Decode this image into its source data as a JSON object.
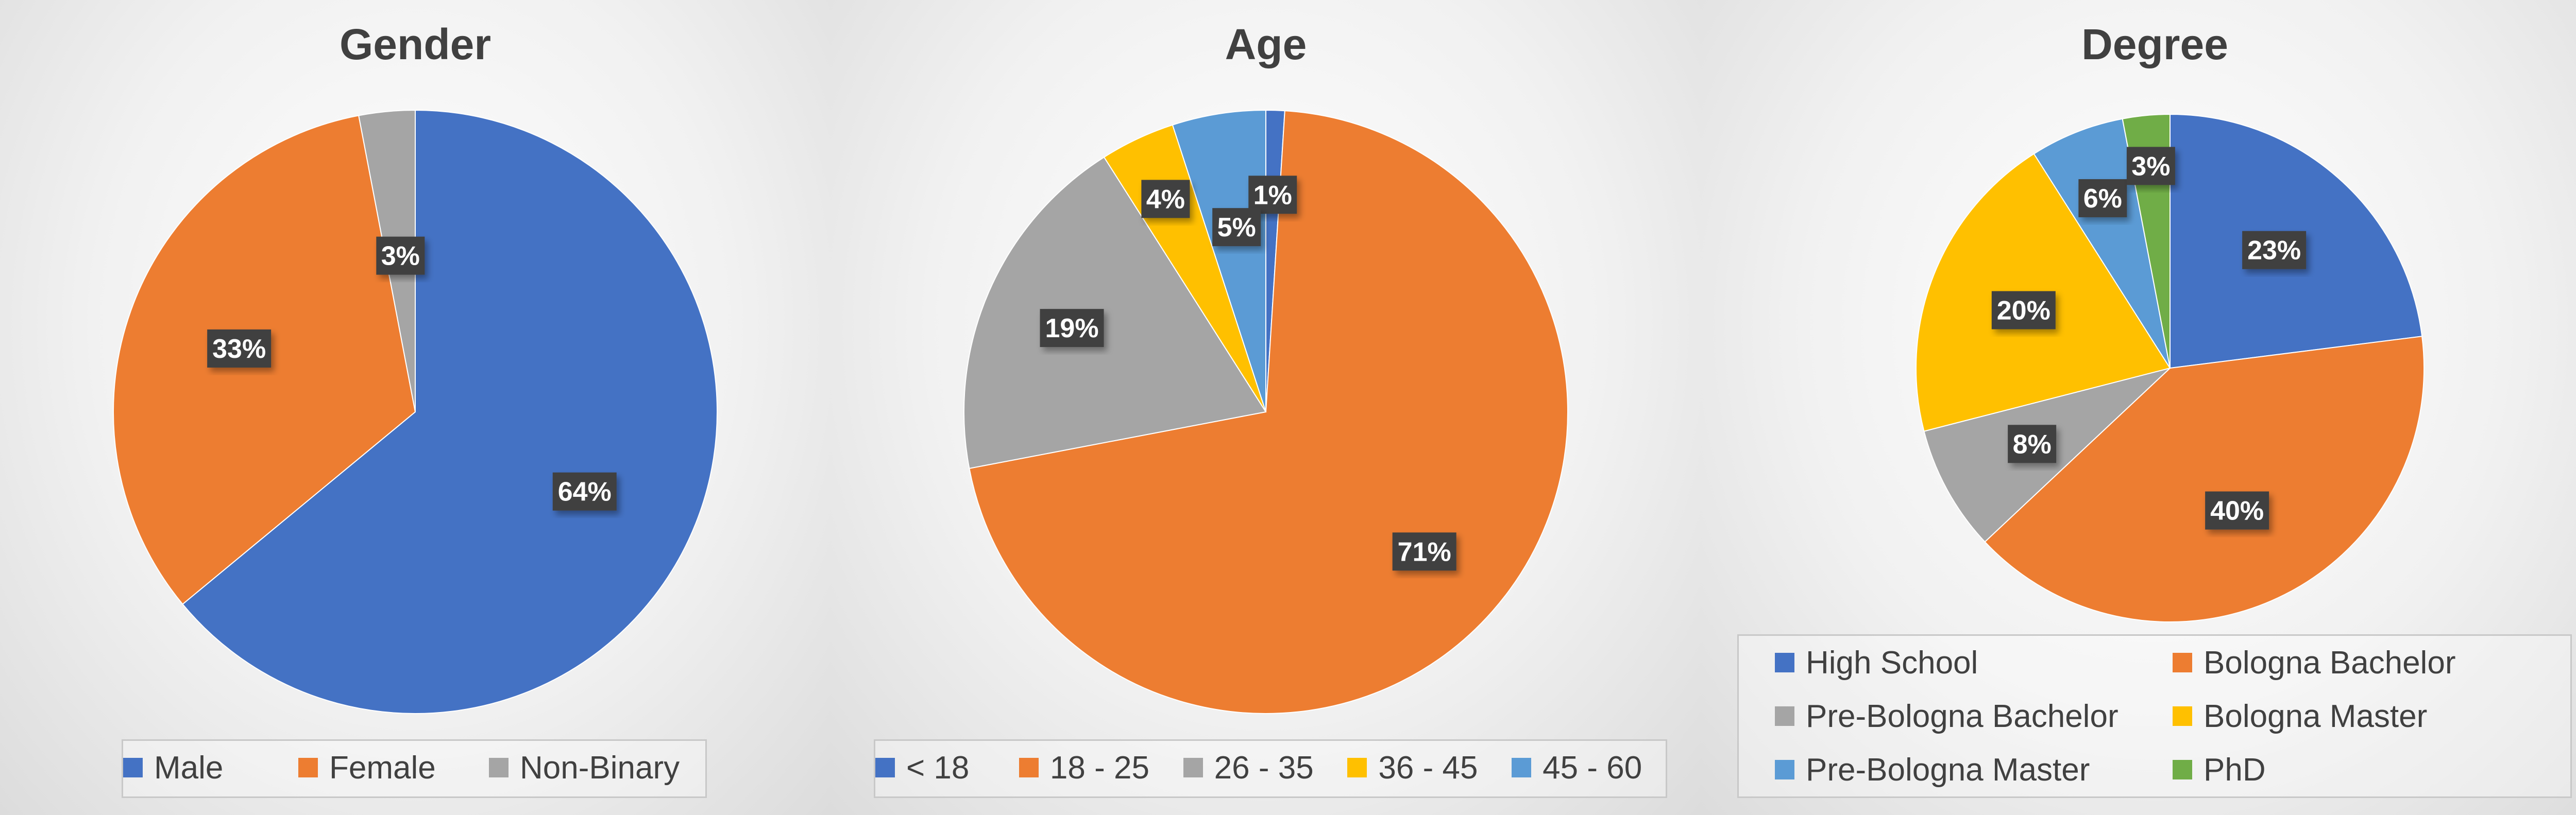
{
  "chart_data": [
    {
      "type": "pie",
      "title": "Gender",
      "categories": [
        "Male",
        "Female",
        "Non-Binary"
      ],
      "values": [
        64,
        33,
        3
      ],
      "labels": [
        "64%",
        "33%",
        "3%"
      ],
      "colors": [
        "#4472C4",
        "#ED7D31",
        "#A5A5A5"
      ],
      "legend_position": "bottom"
    },
    {
      "type": "pie",
      "title": "Age",
      "categories": [
        "< 18",
        "18 - 25",
        "26 - 35",
        "36 - 45",
        "45 - 60"
      ],
      "values": [
        1,
        71,
        19,
        4,
        5
      ],
      "labels": [
        "1%",
        "71%",
        "19%",
        "4%",
        "5%"
      ],
      "colors": [
        "#4472C4",
        "#ED7D31",
        "#A5A5A5",
        "#FFC000",
        "#5B9BD5"
      ],
      "legend_position": "bottom"
    },
    {
      "type": "pie",
      "title": "Degree",
      "categories": [
        "High School",
        "Bologna Bachelor",
        "Pre-Bologna Bachelor",
        "Bologna Master",
        "Pre-Bologna Master",
        "PhD"
      ],
      "values": [
        23,
        40,
        8,
        20,
        6,
        3
      ],
      "labels": [
        "23%",
        "40%",
        "8%",
        "20%",
        "6%",
        "3%"
      ],
      "colors": [
        "#4472C4",
        "#ED7D31",
        "#A5A5A5",
        "#FFC000",
        "#5B9BD5",
        "#70AD47"
      ],
      "legend_position": "bottom"
    }
  ]
}
